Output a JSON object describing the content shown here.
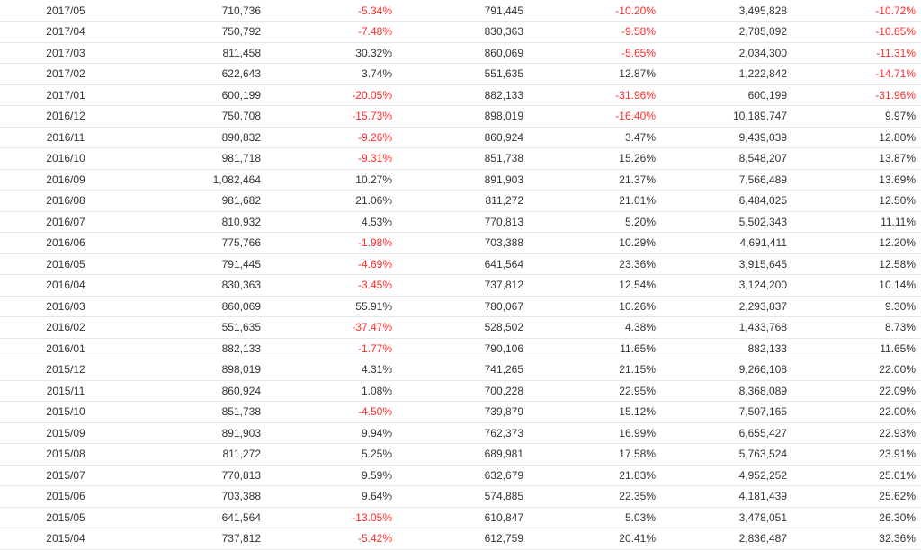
{
  "colors": {
    "negative": "#ff2a2a",
    "text": "#333333",
    "row_border": "#e6e6e6"
  },
  "rows": [
    {
      "date": "2017/05",
      "v1": "710,736",
      "p1": "-5.34%",
      "v2": "791,445",
      "p2": "-10.20%",
      "v3": "3,495,828",
      "p3": "-10.72%"
    },
    {
      "date": "2017/04",
      "v1": "750,792",
      "p1": "-7.48%",
      "v2": "830,363",
      "p2": "-9.58%",
      "v3": "2,785,092",
      "p3": "-10.85%"
    },
    {
      "date": "2017/03",
      "v1": "811,458",
      "p1": "30.32%",
      "v2": "860,069",
      "p2": "-5.65%",
      "v3": "2,034,300",
      "p3": "-11.31%"
    },
    {
      "date": "2017/02",
      "v1": "622,643",
      "p1": "3.74%",
      "v2": "551,635",
      "p2": "12.87%",
      "v3": "1,222,842",
      "p3": "-14.71%"
    },
    {
      "date": "2017/01",
      "v1": "600,199",
      "p1": "-20.05%",
      "v2": "882,133",
      "p2": "-31.96%",
      "v3": "600,199",
      "p3": "-31.96%"
    },
    {
      "date": "2016/12",
      "v1": "750,708",
      "p1": "-15.73%",
      "v2": "898,019",
      "p2": "-16.40%",
      "v3": "10,189,747",
      "p3": "9.97%"
    },
    {
      "date": "2016/11",
      "v1": "890,832",
      "p1": "-9.26%",
      "v2": "860,924",
      "p2": "3.47%",
      "v3": "9,439,039",
      "p3": "12.80%"
    },
    {
      "date": "2016/10",
      "v1": "981,718",
      "p1": "-9.31%",
      "v2": "851,738",
      "p2": "15.26%",
      "v3": "8,548,207",
      "p3": "13.87%"
    },
    {
      "date": "2016/09",
      "v1": "1,082,464",
      "p1": "10.27%",
      "v2": "891,903",
      "p2": "21.37%",
      "v3": "7,566,489",
      "p3": "13.69%"
    },
    {
      "date": "2016/08",
      "v1": "981,682",
      "p1": "21.06%",
      "v2": "811,272",
      "p2": "21.01%",
      "v3": "6,484,025",
      "p3": "12.50%"
    },
    {
      "date": "2016/07",
      "v1": "810,932",
      "p1": "4.53%",
      "v2": "770,813",
      "p2": "5.20%",
      "v3": "5,502,343",
      "p3": "11.11%"
    },
    {
      "date": "2016/06",
      "v1": "775,766",
      "p1": "-1.98%",
      "v2": "703,388",
      "p2": "10.29%",
      "v3": "4,691,411",
      "p3": "12.20%"
    },
    {
      "date": "2016/05",
      "v1": "791,445",
      "p1": "-4.69%",
      "v2": "641,564",
      "p2": "23.36%",
      "v3": "3,915,645",
      "p3": "12.58%"
    },
    {
      "date": "2016/04",
      "v1": "830,363",
      "p1": "-3.45%",
      "v2": "737,812",
      "p2": "12.54%",
      "v3": "3,124,200",
      "p3": "10.14%"
    },
    {
      "date": "2016/03",
      "v1": "860,069",
      "p1": "55.91%",
      "v2": "780,067",
      "p2": "10.26%",
      "v3": "2,293,837",
      "p3": "9.30%"
    },
    {
      "date": "2016/02",
      "v1": "551,635",
      "p1": "-37.47%",
      "v2": "528,502",
      "p2": "4.38%",
      "v3": "1,433,768",
      "p3": "8.73%"
    },
    {
      "date": "2016/01",
      "v1": "882,133",
      "p1": "-1.77%",
      "v2": "790,106",
      "p2": "11.65%",
      "v3": "882,133",
      "p3": "11.65%"
    },
    {
      "date": "2015/12",
      "v1": "898,019",
      "p1": "4.31%",
      "v2": "741,265",
      "p2": "21.15%",
      "v3": "9,266,108",
      "p3": "22.00%"
    },
    {
      "date": "2015/11",
      "v1": "860,924",
      "p1": "1.08%",
      "v2": "700,228",
      "p2": "22.95%",
      "v3": "8,368,089",
      "p3": "22.09%"
    },
    {
      "date": "2015/10",
      "v1": "851,738",
      "p1": "-4.50%",
      "v2": "739,879",
      "p2": "15.12%",
      "v3": "7,507,165",
      "p3": "22.00%"
    },
    {
      "date": "2015/09",
      "v1": "891,903",
      "p1": "9.94%",
      "v2": "762,373",
      "p2": "16.99%",
      "v3": "6,655,427",
      "p3": "22.93%"
    },
    {
      "date": "2015/08",
      "v1": "811,272",
      "p1": "5.25%",
      "v2": "689,981",
      "p2": "17.58%",
      "v3": "5,763,524",
      "p3": "23.91%"
    },
    {
      "date": "2015/07",
      "v1": "770,813",
      "p1": "9.59%",
      "v2": "632,679",
      "p2": "21.83%",
      "v3": "4,952,252",
      "p3": "25.01%"
    },
    {
      "date": "2015/06",
      "v1": "703,388",
      "p1": "9.64%",
      "v2": "574,885",
      "p2": "22.35%",
      "v3": "4,181,439",
      "p3": "25.62%"
    },
    {
      "date": "2015/05",
      "v1": "641,564",
      "p1": "-13.05%",
      "v2": "610,847",
      "p2": "5.03%",
      "v3": "3,478,051",
      "p3": "26.30%"
    },
    {
      "date": "2015/04",
      "v1": "737,812",
      "p1": "-5.42%",
      "v2": "612,759",
      "p2": "20.41%",
      "v3": "2,836,487",
      "p3": "32.36%"
    }
  ]
}
